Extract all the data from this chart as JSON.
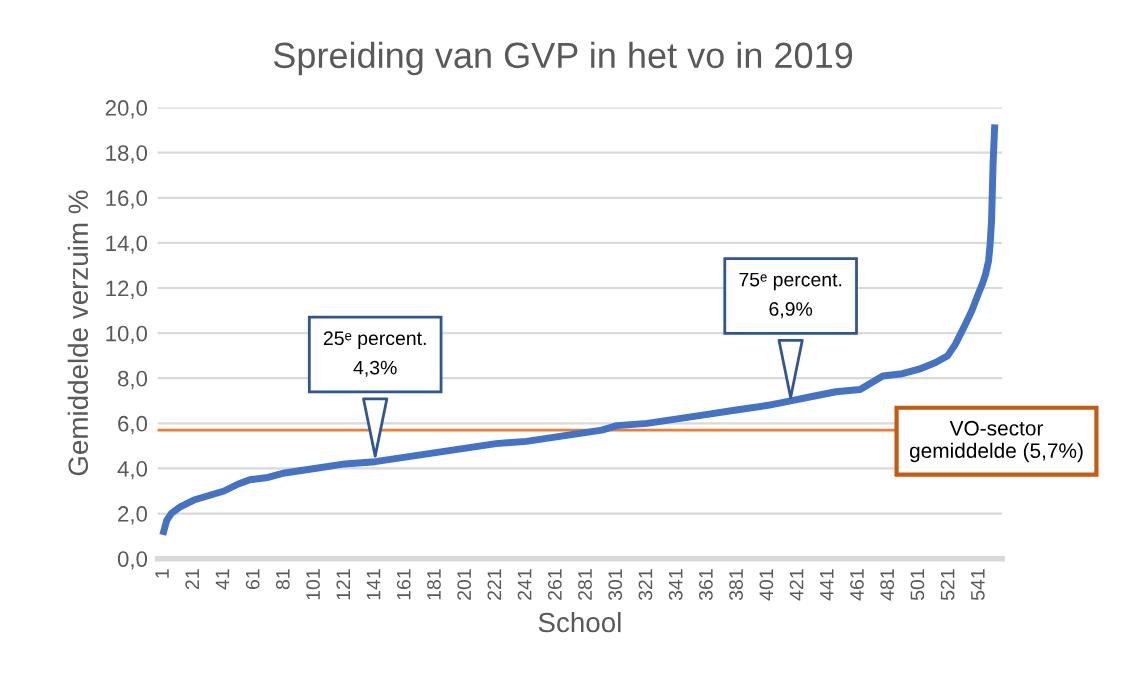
{
  "chart_data": {
    "type": "line",
    "title": "Spreiding van GVP in het vo in 2019",
    "xlabel": "School",
    "ylabel": "Gemiddelde verzuim %",
    "series": [
      {
        "color": "#4472c4",
        "x": [
          1,
          3,
          6,
          12,
          21,
          31,
          41,
          50,
          58,
          70,
          81,
          91,
          101,
          121,
          141,
          161,
          181,
          201,
          221,
          241,
          261,
          281,
          291,
          301,
          321,
          341,
          361,
          381,
          401,
          416,
          431,
          446,
          462,
          477,
          490,
          501,
          512,
          520,
          525,
          531,
          536,
          540,
          543,
          545,
          547,
          548,
          549,
          550,
          551
        ],
        "values": [
          1.2,
          1.7,
          2.0,
          2.3,
          2.6,
          2.8,
          3.0,
          3.3,
          3.5,
          3.6,
          3.8,
          3.9,
          4.0,
          4.2,
          4.3,
          4.5,
          4.7,
          4.9,
          5.1,
          5.2,
          5.4,
          5.6,
          5.7,
          5.9,
          6.0,
          6.2,
          6.4,
          6.6,
          6.8,
          7.0,
          7.2,
          7.4,
          7.5,
          8.1,
          8.2,
          8.4,
          8.7,
          9.0,
          9.5,
          10.3,
          11.0,
          11.7,
          12.2,
          12.6,
          13.2,
          13.9,
          15.0,
          17.5,
          19.1
        ]
      }
    ],
    "xlim": [
      -3,
      556
    ],
    "xticks": [
      1,
      21,
      41,
      61,
      81,
      101,
      121,
      141,
      161,
      181,
      201,
      221,
      241,
      261,
      281,
      301,
      321,
      341,
      361,
      381,
      401,
      421,
      441,
      461,
      481,
      501,
      521,
      541
    ],
    "ylim": [
      0,
      20
    ],
    "yticks": [
      {
        "value": 0,
        "label": "0,0"
      },
      {
        "value": 2,
        "label": "2,0"
      },
      {
        "value": 4,
        "label": "4,0"
      },
      {
        "value": 6,
        "label": "6,0"
      },
      {
        "value": 8,
        "label": "8,0"
      },
      {
        "value": 10,
        "label": "10,0"
      },
      {
        "value": 12,
        "label": "12,0"
      },
      {
        "value": 14,
        "label": "14,0"
      },
      {
        "value": 16,
        "label": "16,0"
      },
      {
        "value": 18,
        "label": "18,0"
      },
      {
        "value": 20,
        "label": "20,0"
      }
    ],
    "grid": "y",
    "marker": "none",
    "line_style": "solid",
    "ref_lines": [
      {
        "axis": "y",
        "value": 5.7,
        "label": "VO-sector\ngemiddelde (5,7%)",
        "color": "#ed7d31"
      }
    ],
    "annotations": [
      {
        "text": "25ᵉ percent.\n4,3%",
        "x": 141,
        "y": 4.3
      },
      {
        "text": "75ᵉ percent.\n6,9%",
        "x": 416,
        "y": 6.9
      }
    ]
  }
}
